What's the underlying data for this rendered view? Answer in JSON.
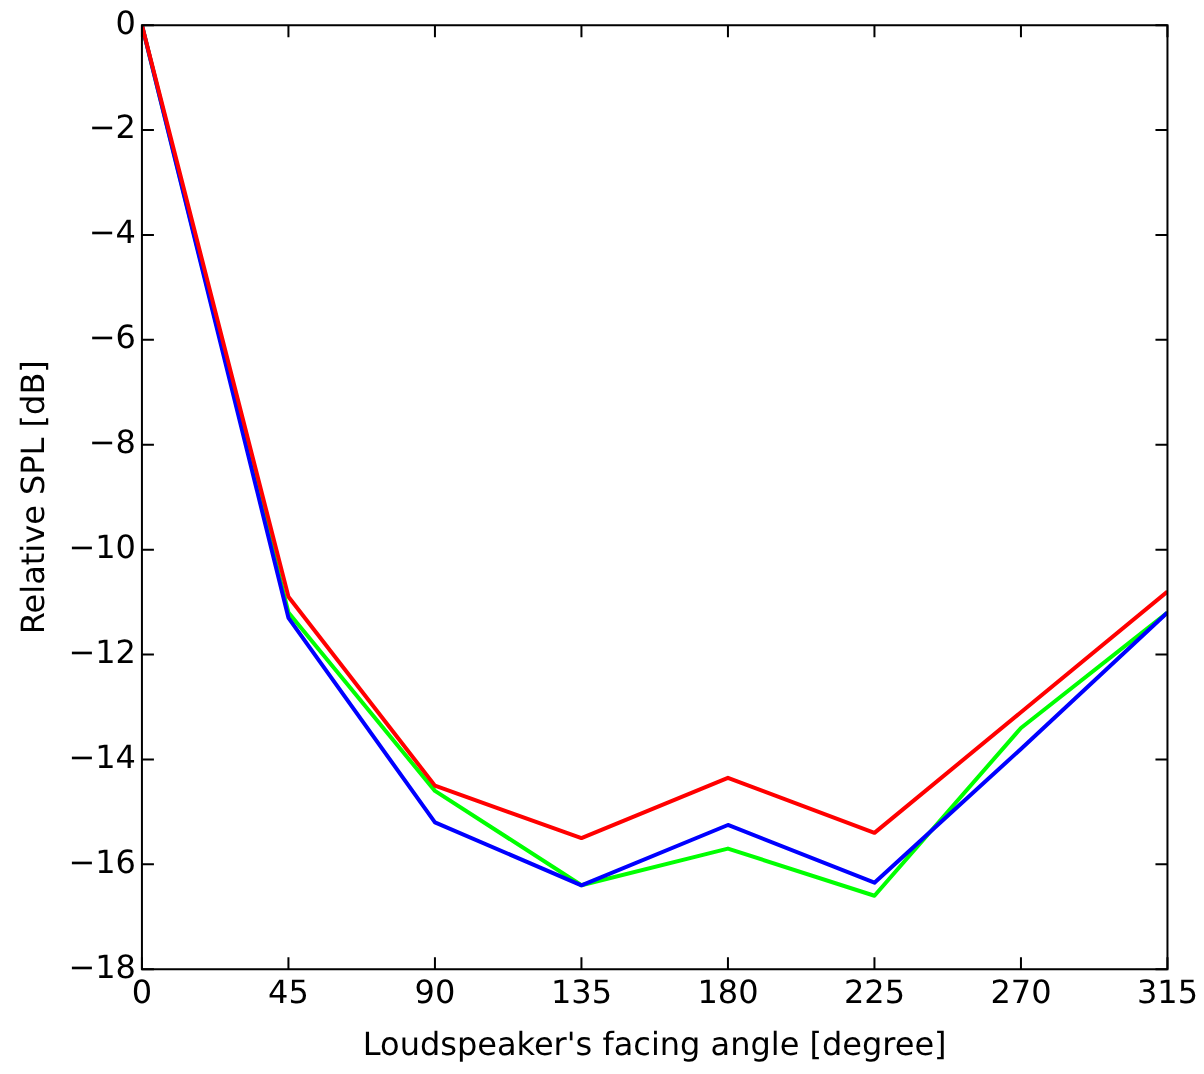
{
  "chart_data": {
    "type": "line",
    "xlabel": "Loudspeaker's facing angle [degree]",
    "ylabel": "Relative SPL [dB]",
    "x": [
      0,
      45,
      90,
      135,
      180,
      225,
      270,
      315
    ],
    "series": [
      {
        "color": "#ff0000",
        "values": [
          0,
          -10.9,
          -14.5,
          -15.5,
          -14.35,
          -15.4,
          -13.1,
          -10.8
        ]
      },
      {
        "color": "#0000ff",
        "values": [
          0,
          -11.3,
          -15.2,
          -16.4,
          -15.25,
          -16.35,
          -13.8,
          -11.2
        ]
      },
      {
        "color": "#00ff00",
        "values": [
          0,
          -11.2,
          -14.6,
          -16.4,
          -15.7,
          -16.6,
          -13.4,
          -11.2
        ]
      }
    ],
    "xlim": [
      0,
      315
    ],
    "xticks": [
      0,
      45,
      90,
      135,
      180,
      225,
      270,
      315
    ],
    "ylim": [
      -18,
      0
    ],
    "yticks": [
      -18,
      -16,
      -14,
      -12,
      -10,
      -8,
      -6,
      -4,
      -2,
      0
    ],
    "grid": false,
    "legend": false,
    "marker": "none",
    "line_style": "solid"
  }
}
